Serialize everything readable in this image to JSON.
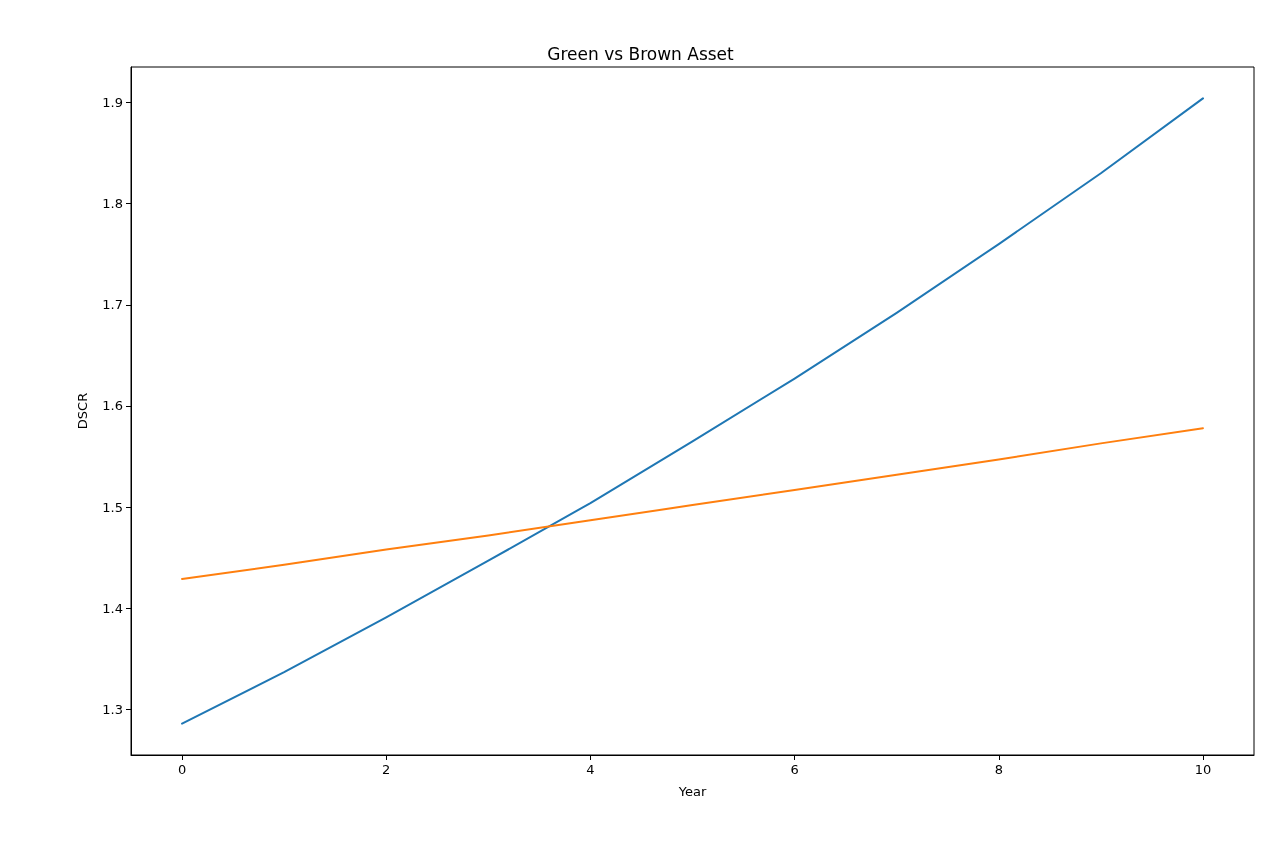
{
  "chart_data": {
    "type": "line",
    "title": "Green vs Brown Asset",
    "xlabel": "Year",
    "ylabel": "DSCR",
    "x": [
      0,
      1,
      2,
      3,
      4,
      5,
      6,
      7,
      8,
      9,
      10
    ],
    "series": [
      {
        "color": "#1f77b4",
        "values": [
          1.286,
          1.337,
          1.391,
          1.447,
          1.504,
          1.565,
          1.627,
          1.692,
          1.76,
          1.83,
          1.904
        ]
      },
      {
        "color": "#ff7f0e",
        "values": [
          1.429,
          1.443,
          1.458,
          1.472,
          1.487,
          1.502,
          1.517,
          1.532,
          1.547,
          1.563,
          1.578
        ]
      }
    ],
    "xlim": [
      -0.5,
      10.5
    ],
    "ylim": [
      1.255,
      1.935
    ],
    "xticks": [
      0,
      2,
      4,
      6,
      8,
      10
    ],
    "yticks": [
      1.3,
      1.4,
      1.5,
      1.6,
      1.7,
      1.8,
      1.9
    ],
    "grid": false,
    "marker": "none",
    "line_style": "solid"
  }
}
